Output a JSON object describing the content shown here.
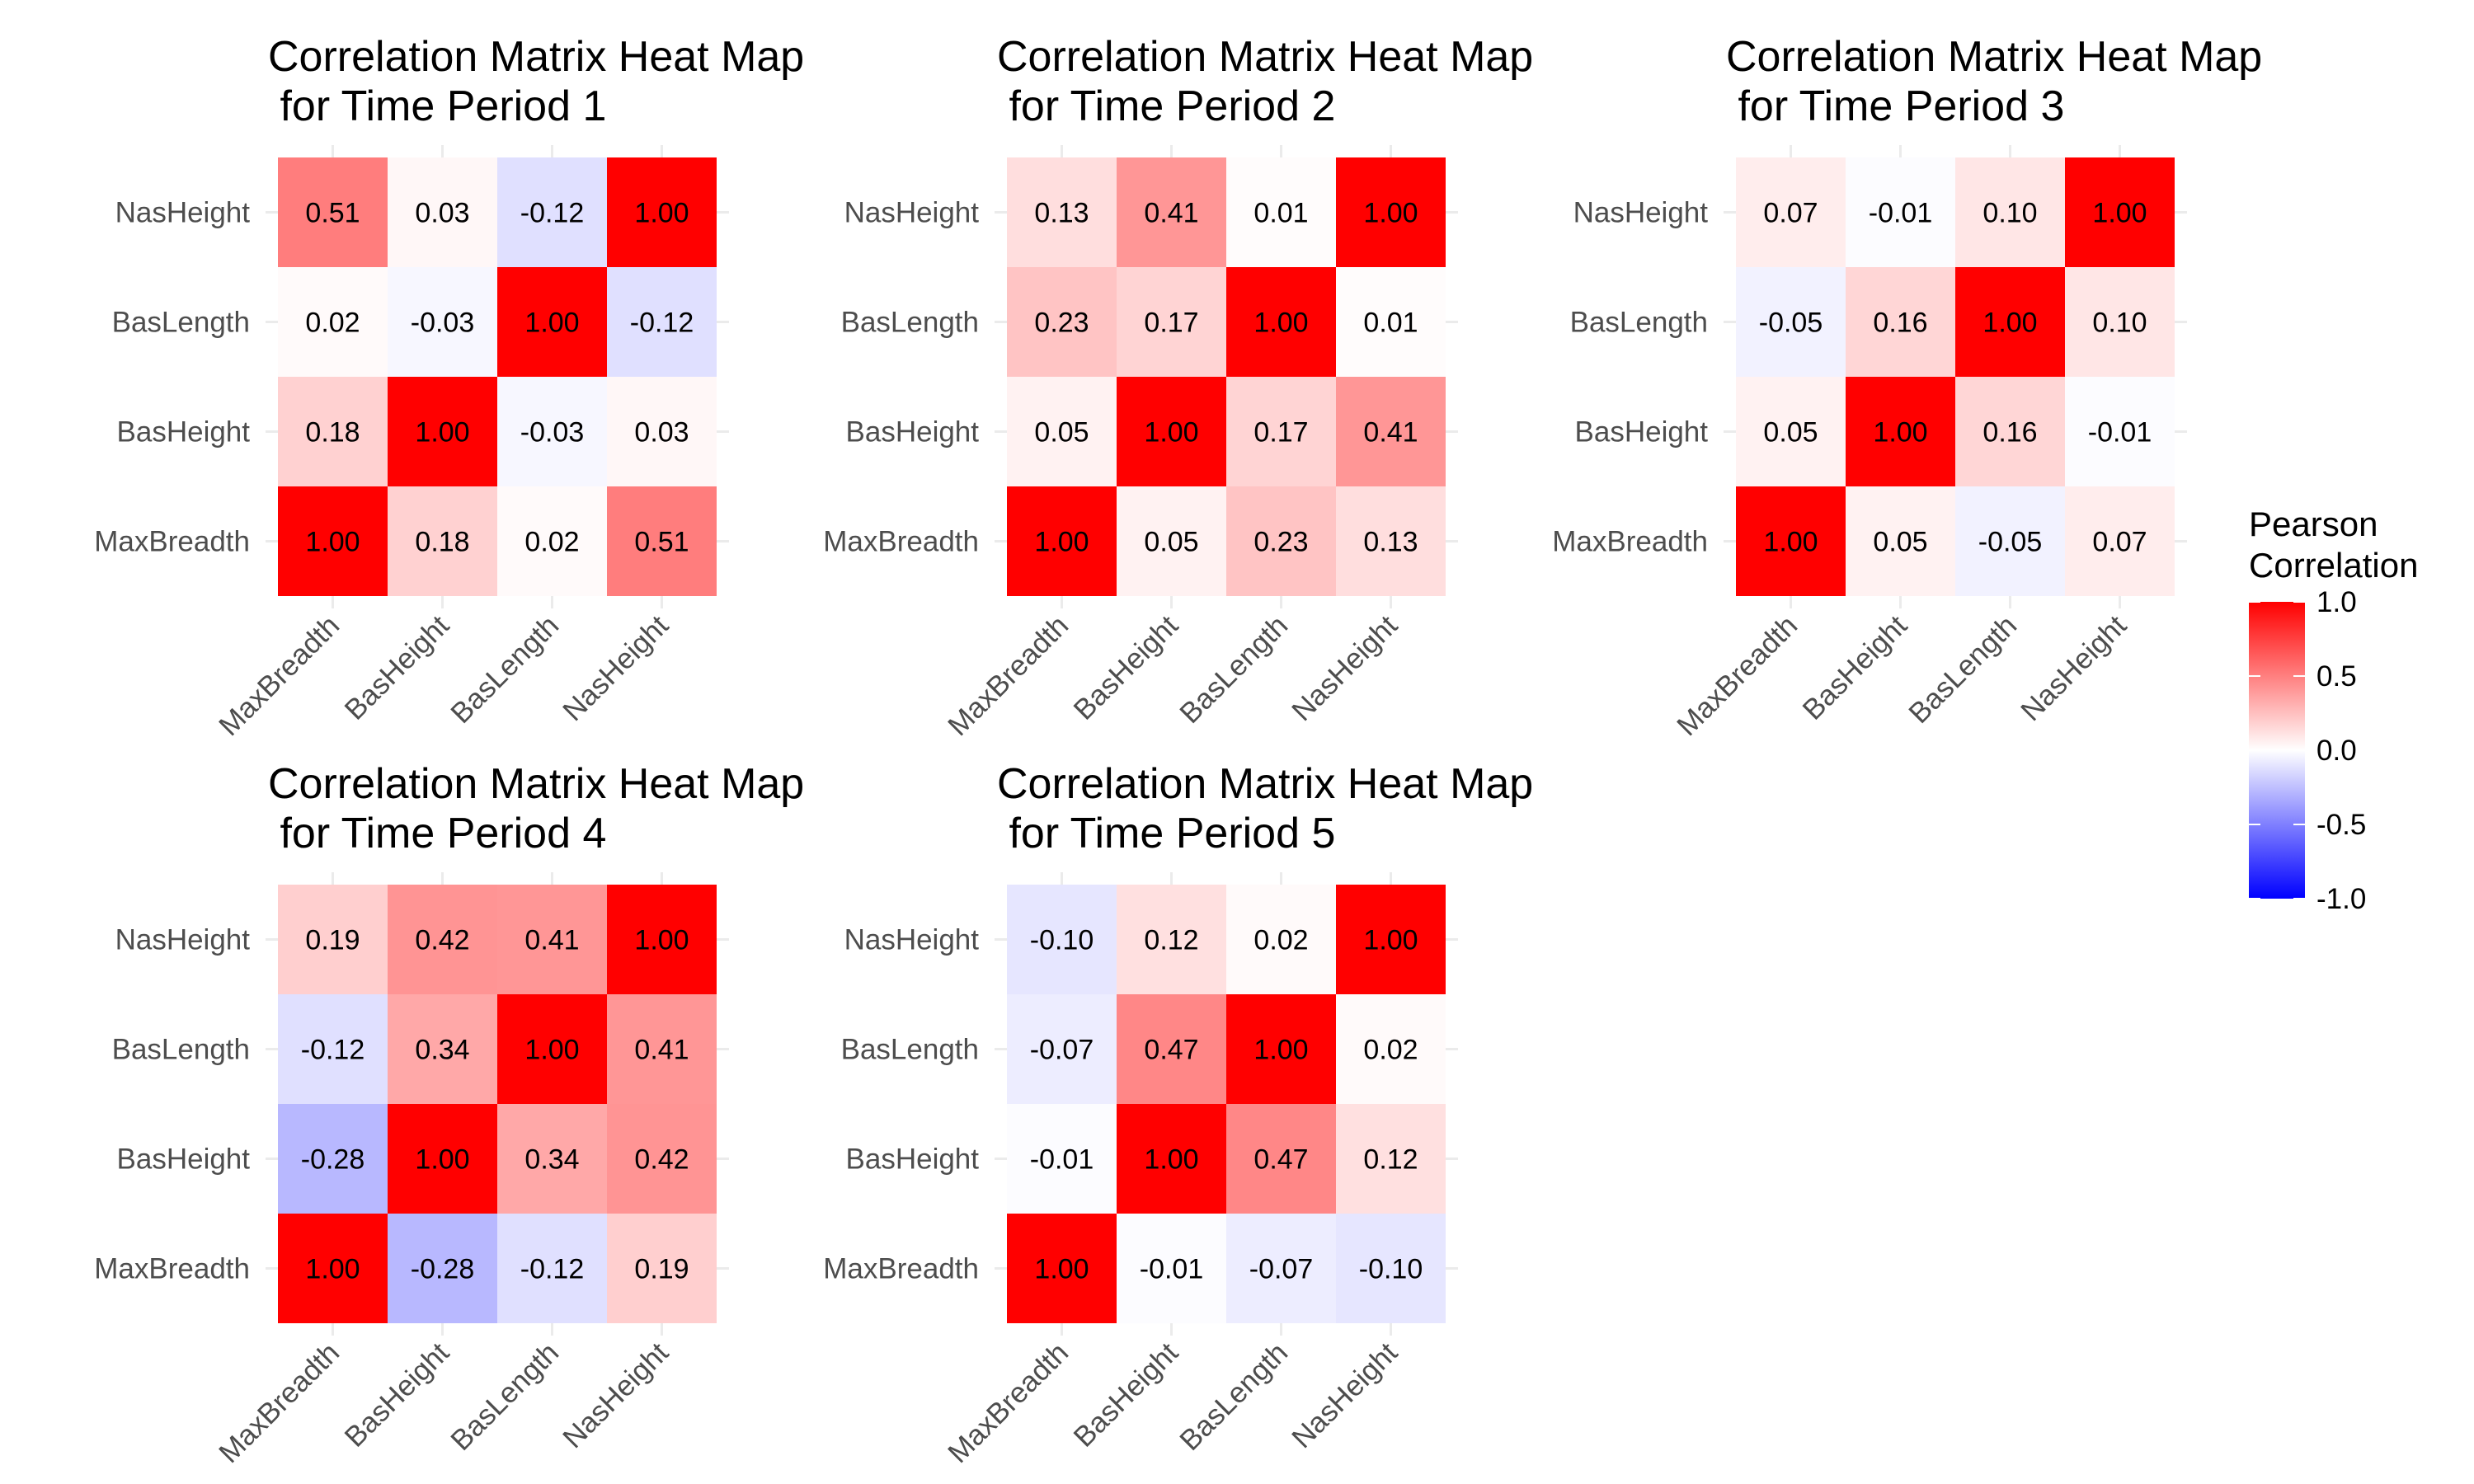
{
  "chart_data": [
    {
      "type": "heatmap",
      "title": "Correlation Matrix Heat Map\n for Time Period 1",
      "x_categories": [
        "MaxBreadth",
        "BasHeight",
        "BasLength",
        "NasHeight"
      ],
      "y_categories": [
        "MaxBreadth",
        "BasHeight",
        "BasLength",
        "NasHeight"
      ],
      "values": [
        [
          1.0,
          0.18,
          0.02,
          0.51
        ],
        [
          0.18,
          1.0,
          -0.03,
          0.03
        ],
        [
          0.02,
          -0.03,
          1.0,
          -0.12
        ],
        [
          0.51,
          0.03,
          -0.12,
          1.0
        ]
      ]
    },
    {
      "type": "heatmap",
      "title": "Correlation Matrix Heat Map\n for Time Period 2",
      "x_categories": [
        "MaxBreadth",
        "BasHeight",
        "BasLength",
        "NasHeight"
      ],
      "y_categories": [
        "MaxBreadth",
        "BasHeight",
        "BasLength",
        "NasHeight"
      ],
      "values": [
        [
          1.0,
          0.05,
          0.23,
          0.13
        ],
        [
          0.05,
          1.0,
          0.17,
          0.41
        ],
        [
          0.23,
          0.17,
          1.0,
          0.01
        ],
        [
          0.13,
          0.41,
          0.01,
          1.0
        ]
      ]
    },
    {
      "type": "heatmap",
      "title": "Correlation Matrix Heat Map\n for Time Period 3",
      "x_categories": [
        "MaxBreadth",
        "BasHeight",
        "BasLength",
        "NasHeight"
      ],
      "y_categories": [
        "MaxBreadth",
        "BasHeight",
        "BasLength",
        "NasHeight"
      ],
      "values": [
        [
          1.0,
          0.05,
          -0.05,
          0.07
        ],
        [
          0.05,
          1.0,
          0.16,
          -0.01
        ],
        [
          -0.05,
          0.16,
          1.0,
          0.1
        ],
        [
          0.07,
          -0.01,
          0.1,
          1.0
        ]
      ]
    },
    {
      "type": "heatmap",
      "title": "Correlation Matrix Heat Map\n for Time Period 4",
      "x_categories": [
        "MaxBreadth",
        "BasHeight",
        "BasLength",
        "NasHeight"
      ],
      "y_categories": [
        "MaxBreadth",
        "BasHeight",
        "BasLength",
        "NasHeight"
      ],
      "values": [
        [
          1.0,
          -0.28,
          -0.12,
          0.19
        ],
        [
          -0.28,
          1.0,
          0.34,
          0.42
        ],
        [
          -0.12,
          0.34,
          1.0,
          0.41
        ],
        [
          0.19,
          0.42,
          0.41,
          1.0
        ]
      ]
    },
    {
      "type": "heatmap",
      "title": "Correlation Matrix Heat Map\n for Time Period 5",
      "x_categories": [
        "MaxBreadth",
        "BasHeight",
        "BasLength",
        "NasHeight"
      ],
      "y_categories": [
        "MaxBreadth",
        "BasHeight",
        "BasLength",
        "NasHeight"
      ],
      "values": [
        [
          1.0,
          -0.01,
          -0.07,
          -0.1
        ],
        [
          -0.01,
          1.0,
          0.47,
          0.12
        ],
        [
          -0.07,
          0.47,
          1.0,
          0.02
        ],
        [
          -0.1,
          0.12,
          0.02,
          1.0
        ]
      ]
    }
  ],
  "legend": {
    "title": "Pearson\nCorrelation",
    "ticks": [
      "1.0",
      "0.5",
      "0.0",
      "-0.5",
      "-1.0"
    ],
    "range": [
      -1,
      1
    ],
    "colors": {
      "low": "#0000ff",
      "mid": "#ffffff",
      "high": "#ff0000"
    }
  }
}
